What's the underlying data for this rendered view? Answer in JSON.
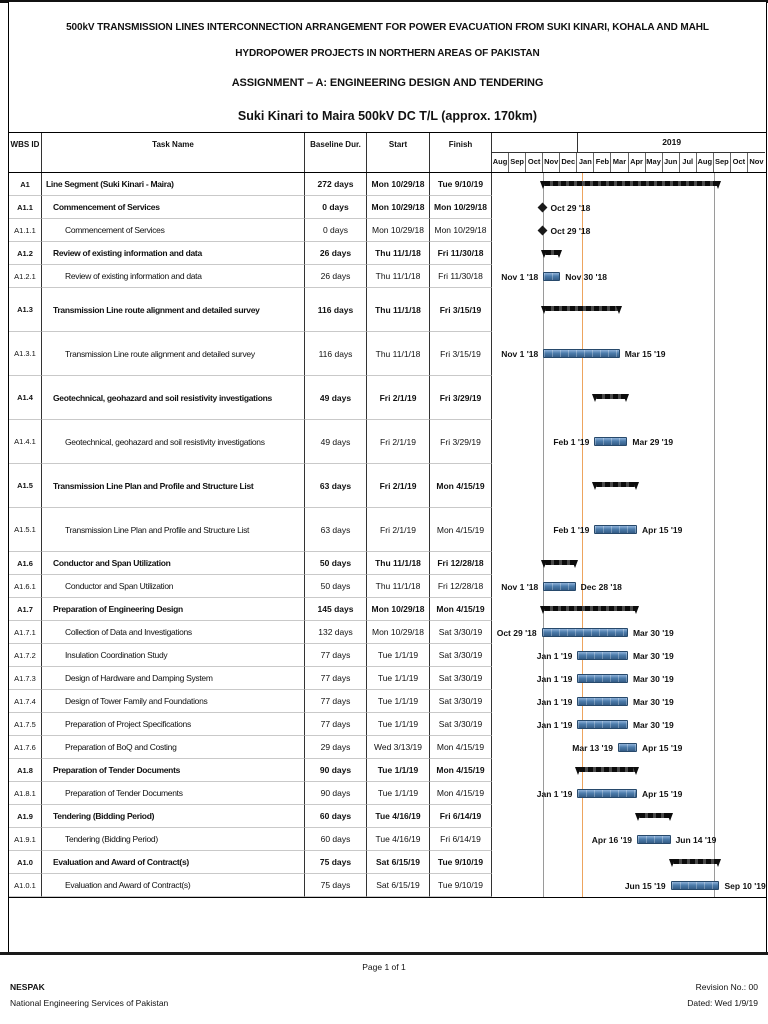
{
  "header": {
    "title_main": "500kV TRANSMISSION LINES INTERCONNECTION ARRANGEMENT FOR POWER EVACUATION FROM SUKI KINARI, KOHALA AND MAHL HYDROPOWER PROJECTS IN NORTHERN AREAS OF PAKISTAN",
    "title_assignment": "ASSIGNMENT – A: ENGINEERING DESIGN AND TENDERING",
    "title_segment": "Suki Kinari to Maira 500kV DC T/L (approx. 170km)"
  },
  "table": {
    "columns": {
      "wbs": "WBS ID",
      "task": "Task Name",
      "dur": "Baseline Dur.",
      "start": "Start",
      "finish": "Finish"
    },
    "timeline": {
      "year_groups": [
        {
          "label": "",
          "span": 5
        },
        {
          "label": "2019",
          "span": 11
        }
      ],
      "months": [
        "Aug",
        "Sep",
        "Oct",
        "Nov",
        "Dec",
        "Jan",
        "Feb",
        "Mar",
        "Apr",
        "May",
        "Jun",
        "Jul",
        "Aug",
        "Sep",
        "Oct",
        "Nov"
      ]
    }
  },
  "chart_data": {
    "type": "gantt",
    "timeline_start_month": "Aug 2018",
    "timeline_months_total": 16,
    "status_date": "1/9/19",
    "gridline_dates": [
      "11/1/18",
      "9/1/19"
    ],
    "task_bar_color": "#4c7cab",
    "summary_bar_color": "#0c0c0c",
    "status_line_color": "#eda45e",
    "tasks": [
      {
        "wbs": "A1",
        "name": "Line Segment (Suki Kinari - Maira)",
        "dur": "272 days",
        "start": "Mon 10/29/18",
        "finish": "Tue 9/10/19",
        "level": 0,
        "summary": true,
        "tall": false,
        "bar": {
          "type": "summary",
          "from": "10/29/18",
          "to": "9/10/19"
        }
      },
      {
        "wbs": "A1.1",
        "name": "Commencement of Services",
        "dur": "0 days",
        "start": "Mon 10/29/18",
        "finish": "Mon 10/29/18",
        "level": 1,
        "summary": true,
        "tall": false,
        "bar": {
          "type": "milestone",
          "from": "10/29/18",
          "label_right": "Oct 29 '18"
        }
      },
      {
        "wbs": "A1.1.1",
        "name": "Commencement of Services",
        "dur": "0 days",
        "start": "Mon 10/29/18",
        "finish": "Mon 10/29/18",
        "level": 2,
        "summary": false,
        "tall": false,
        "bar": {
          "type": "milestone",
          "from": "10/29/18",
          "label_right": "Oct 29 '18"
        }
      },
      {
        "wbs": "A1.2",
        "name": "Review of existing information and data",
        "dur": "26 days",
        "start": "Thu 11/1/18",
        "finish": "Fri 11/30/18",
        "level": 1,
        "summary": true,
        "tall": false,
        "bar": {
          "type": "summary",
          "from": "11/1/18",
          "to": "11/30/18"
        }
      },
      {
        "wbs": "A1.2.1",
        "name": "Review of existing information and data",
        "dur": "26 days",
        "start": "Thu 11/1/18",
        "finish": "Fri 11/30/18",
        "level": 2,
        "summary": false,
        "tall": false,
        "bar": {
          "type": "task",
          "from": "11/1/18",
          "to": "11/30/18",
          "label_left": "Nov 1 '18",
          "label_right": "Nov 30 '18"
        }
      },
      {
        "wbs": "A1.3",
        "name": "Transmission Line route alignment and detailed survey",
        "dur": "116 days",
        "start": "Thu 11/1/18",
        "finish": "Fri 3/15/19",
        "level": 1,
        "summary": true,
        "tall": true,
        "bar": {
          "type": "summary",
          "from": "11/1/18",
          "to": "3/15/19"
        }
      },
      {
        "wbs": "A1.3.1",
        "name": "Transmission Line route alignment and detailed survey",
        "dur": "116 days",
        "start": "Thu 11/1/18",
        "finish": "Fri 3/15/19",
        "level": 2,
        "summary": false,
        "tall": true,
        "bar": {
          "type": "task",
          "from": "11/1/18",
          "to": "3/15/19",
          "label_left": "Nov 1 '18",
          "label_right": "Mar 15 '19"
        }
      },
      {
        "wbs": "A1.4",
        "name": "Geotechnical, geohazard and soil resistivity investigations",
        "dur": "49 days",
        "start": "Fri 2/1/19",
        "finish": "Fri 3/29/19",
        "level": 1,
        "summary": true,
        "tall": true,
        "bar": {
          "type": "summary",
          "from": "2/1/19",
          "to": "3/29/19"
        }
      },
      {
        "wbs": "A1.4.1",
        "name": "Geotechnical, geohazard and soil resistivity investigations",
        "dur": "49 days",
        "start": "Fri 2/1/19",
        "finish": "Fri 3/29/19",
        "level": 2,
        "summary": false,
        "tall": true,
        "bar": {
          "type": "task",
          "from": "2/1/19",
          "to": "3/29/19",
          "label_left": "Feb 1 '19",
          "label_right": "Mar 29 '19"
        }
      },
      {
        "wbs": "A1.5",
        "name": "Transmission Line Plan and Profile and Structure List",
        "dur": "63 days",
        "start": "Fri 2/1/19",
        "finish": "Mon 4/15/19",
        "level": 1,
        "summary": true,
        "tall": true,
        "bar": {
          "type": "summary",
          "from": "2/1/19",
          "to": "4/15/19"
        }
      },
      {
        "wbs": "A1.5.1",
        "name": "Transmission Line Plan and Profile and Structure List",
        "dur": "63 days",
        "start": "Fri 2/1/19",
        "finish": "Mon 4/15/19",
        "level": 2,
        "summary": false,
        "tall": true,
        "bar": {
          "type": "task",
          "from": "2/1/19",
          "to": "4/15/19",
          "label_left": "Feb 1 '19",
          "label_right": "Apr 15 '19"
        }
      },
      {
        "wbs": "A1.6",
        "name": "Conductor and Span Utilization",
        "dur": "50 days",
        "start": "Thu 11/1/18",
        "finish": "Fri 12/28/18",
        "level": 1,
        "summary": true,
        "tall": false,
        "bar": {
          "type": "summary",
          "from": "11/1/18",
          "to": "12/28/18"
        }
      },
      {
        "wbs": "A1.6.1",
        "name": "Conductor and Span Utilization",
        "dur": "50 days",
        "start": "Thu 11/1/18",
        "finish": "Fri 12/28/18",
        "level": 2,
        "summary": false,
        "tall": false,
        "bar": {
          "type": "task",
          "from": "11/1/18",
          "to": "12/28/18",
          "label_left": "Nov 1 '18",
          "label_right": "Dec 28 '18"
        }
      },
      {
        "wbs": "A1.7",
        "name": "Preparation of Engineering Design",
        "dur": "145 days",
        "start": "Mon 10/29/18",
        "finish": "Mon 4/15/19",
        "level": 1,
        "summary": true,
        "tall": false,
        "bar": {
          "type": "summary",
          "from": "10/29/18",
          "to": "4/15/19"
        }
      },
      {
        "wbs": "A1.7.1",
        "name": "Collection of Data and Investigations",
        "dur": "132 days",
        "start": "Mon 10/29/18",
        "finish": "Sat 3/30/19",
        "level": 2,
        "summary": false,
        "tall": false,
        "bar": {
          "type": "task",
          "from": "10/29/18",
          "to": "3/30/19",
          "label_left": "Oct 29 '18",
          "label_right": "Mar 30 '19"
        }
      },
      {
        "wbs": "A1.7.2",
        "name": "Insulation Coordination Study",
        "dur": "77 days",
        "start": "Tue 1/1/19",
        "finish": "Sat 3/30/19",
        "level": 2,
        "summary": false,
        "tall": false,
        "bar": {
          "type": "task",
          "from": "1/1/19",
          "to": "3/30/19",
          "label_left": "Jan 1 '19",
          "label_right": "Mar 30 '19"
        }
      },
      {
        "wbs": "A1.7.3",
        "name": "Design of Hardware and Damping System",
        "dur": "77 days",
        "start": "Tue 1/1/19",
        "finish": "Sat 3/30/19",
        "level": 2,
        "summary": false,
        "tall": false,
        "bar": {
          "type": "task",
          "from": "1/1/19",
          "to": "3/30/19",
          "label_left": "Jan 1 '19",
          "label_right": "Mar 30 '19"
        }
      },
      {
        "wbs": "A1.7.4",
        "name": "Design of Tower Family and Foundations",
        "dur": "77 days",
        "start": "Tue 1/1/19",
        "finish": "Sat 3/30/19",
        "level": 2,
        "summary": false,
        "tall": false,
        "bar": {
          "type": "task",
          "from": "1/1/19",
          "to": "3/30/19",
          "label_left": "Jan 1 '19",
          "label_right": "Mar 30 '19"
        }
      },
      {
        "wbs": "A1.7.5",
        "name": "Preparation of Project Specifications",
        "dur": "77 days",
        "start": "Tue 1/1/19",
        "finish": "Sat 3/30/19",
        "level": 2,
        "summary": false,
        "tall": false,
        "bar": {
          "type": "task",
          "from": "1/1/19",
          "to": "3/30/19",
          "label_left": "Jan 1 '19",
          "label_right": "Mar 30 '19"
        }
      },
      {
        "wbs": "A1.7.6",
        "name": "Preparation of BoQ and Costing",
        "dur": "29 days",
        "start": "Wed 3/13/19",
        "finish": "Mon 4/15/19",
        "level": 2,
        "summary": false,
        "tall": false,
        "bar": {
          "type": "task",
          "from": "3/13/19",
          "to": "4/15/19",
          "label_left": "Mar 13 '19",
          "label_right": "Apr 15 '19"
        }
      },
      {
        "wbs": "A1.8",
        "name": "Preparation of Tender Documents",
        "dur": "90 days",
        "start": "Tue 1/1/19",
        "finish": "Mon 4/15/19",
        "level": 1,
        "summary": true,
        "tall": false,
        "bar": {
          "type": "summary",
          "from": "1/1/19",
          "to": "4/15/19"
        }
      },
      {
        "wbs": "A1.8.1",
        "name": "Preparation of Tender Documents",
        "dur": "90 days",
        "start": "Tue 1/1/19",
        "finish": "Mon 4/15/19",
        "level": 2,
        "summary": false,
        "tall": false,
        "bar": {
          "type": "task",
          "from": "1/1/19",
          "to": "4/15/19",
          "label_left": "Jan 1 '19",
          "label_right": "Apr 15 '19"
        }
      },
      {
        "wbs": "A1.9",
        "name": "Tendering (Bidding Period)",
        "dur": "60 days",
        "start": "Tue 4/16/19",
        "finish": "Fri 6/14/19",
        "level": 1,
        "summary": true,
        "tall": false,
        "bar": {
          "type": "summary",
          "from": "4/16/19",
          "to": "6/14/19"
        }
      },
      {
        "wbs": "A1.9.1",
        "name": "Tendering (Bidding Period)",
        "dur": "60 days",
        "start": "Tue 4/16/19",
        "finish": "Fri 6/14/19",
        "level": 2,
        "summary": false,
        "tall": false,
        "bar": {
          "type": "task",
          "from": "4/16/19",
          "to": "6/14/19",
          "label_left": "Apr 16 '19",
          "label_right": "Jun 14 '19"
        }
      },
      {
        "wbs": "A1.0",
        "name": "Evaluation and Award of Contract(s)",
        "dur": "75 days",
        "start": "Sat 6/15/19",
        "finish": "Tue 9/10/19",
        "level": 1,
        "summary": true,
        "tall": false,
        "bar": {
          "type": "summary",
          "from": "6/15/19",
          "to": "9/10/19"
        }
      },
      {
        "wbs": "A1.0.1",
        "name": "Evaluation and Award of Contract(s)",
        "dur": "75 days",
        "start": "Sat 6/15/19",
        "finish": "Tue 9/10/19",
        "level": 2,
        "summary": false,
        "tall": false,
        "bar": {
          "type": "task",
          "from": "6/15/19",
          "to": "9/10/19",
          "label_left": "Jun 15 '19",
          "label_right": "Sep 10 '19"
        }
      }
    ]
  },
  "footer": {
    "page": "Page 1 of 1",
    "org": "NESPAK",
    "org_full": "National Engineering Services of Pakistan",
    "revision": "Revision No.: 00",
    "dated": "Dated: Wed 1/9/19"
  }
}
